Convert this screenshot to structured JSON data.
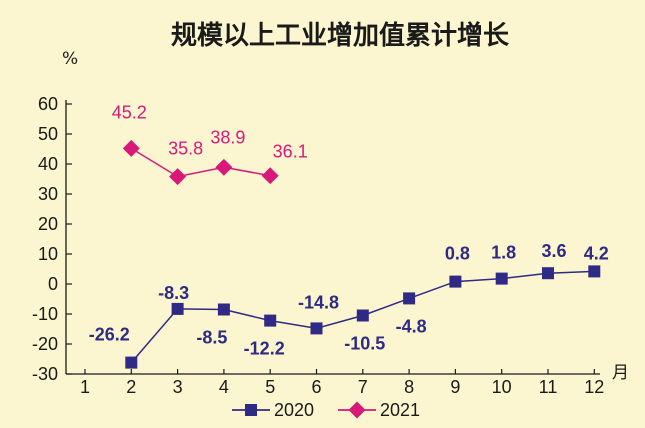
{
  "chart_data": {
    "type": "line",
    "title": "规模以上工业增加值累计增长",
    "ylabel": "%",
    "xlabel": "月",
    "ylim": [
      -30,
      60
    ],
    "yticks": [
      60,
      50,
      40,
      30,
      20,
      10,
      0,
      -10,
      -20,
      -30
    ],
    "categories": [
      "1",
      "2",
      "3",
      "4",
      "5",
      "6",
      "7",
      "8",
      "9",
      "10",
      "11",
      "12"
    ],
    "series": [
      {
        "name": "2020",
        "color": "#2e2a86",
        "marker": "square",
        "x": [
          2,
          3,
          4,
          5,
          6,
          7,
          8,
          9,
          10,
          11,
          12
        ],
        "values": [
          -26.2,
          -8.3,
          -8.5,
          -12.2,
          -14.8,
          -10.5,
          -4.8,
          0.8,
          1.8,
          3.6,
          4.2
        ],
        "labels": [
          "-26.2",
          "-8.3",
          "-8.5",
          "-12.2",
          "-14.8",
          "-10.5",
          "-4.8",
          "0.8",
          "1.8",
          "3.6",
          "4.2"
        ]
      },
      {
        "name": "2021",
        "color": "#d8197a",
        "marker": "diamond",
        "x": [
          2,
          3,
          4,
          5
        ],
        "values": [
          45.2,
          35.8,
          38.9,
          36.1
        ],
        "labels": [
          "45.2",
          "35.8",
          "38.9",
          "36.1"
        ]
      }
    ],
    "legend": "bottom-center"
  }
}
